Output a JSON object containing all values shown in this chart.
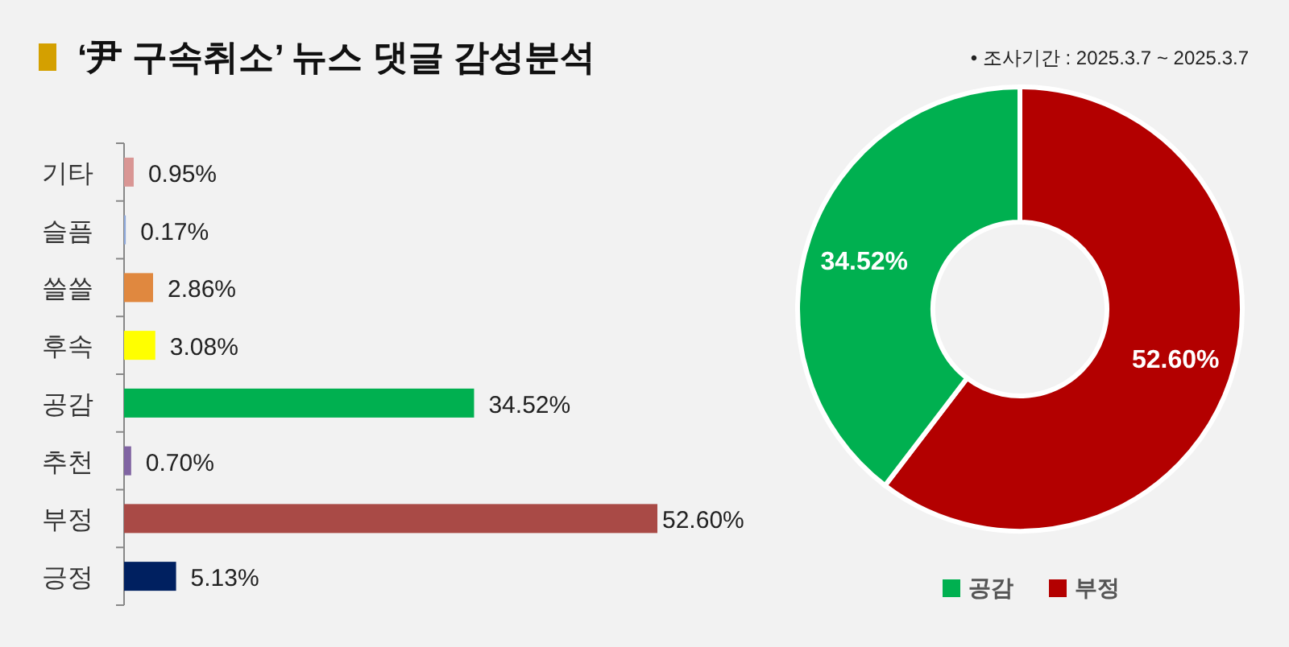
{
  "chart_data": [
    {
      "type": "bar",
      "orientation": "horizontal",
      "title": "‘尹 구속취소’ 뉴스 댓글 감성분석",
      "annotations": [
        "•  조사기간 : 2025.3.7 ~ 2025.3.7"
      ],
      "categories": [
        "기타",
        "슬픔",
        "쓸쓸",
        "후속",
        "공감",
        "추천",
        "부정",
        "긍정"
      ],
      "values": [
        0.95,
        0.17,
        2.86,
        3.08,
        34.52,
        0.7,
        52.6,
        5.13
      ],
      "value_labels": [
        "0.95%",
        "0.17%",
        "2.86%",
        "3.08%",
        "34.52%",
        "0.70%",
        "52.60%",
        "5.13%"
      ],
      "colors": [
        "#d99694",
        "#8faadc",
        "#e0883f",
        "#ffff00",
        "#00b050",
        "#8064a2",
        "#a94a46",
        "#002060"
      ]
    },
    {
      "type": "donut",
      "categories": [
        "부정",
        "공감"
      ],
      "values": [
        52.6,
        34.52
      ],
      "value_labels": [
        "52.60%",
        "34.52%"
      ],
      "colors": [
        "#b30000",
        "#00b050"
      ],
      "legend": "bottom"
    }
  ]
}
